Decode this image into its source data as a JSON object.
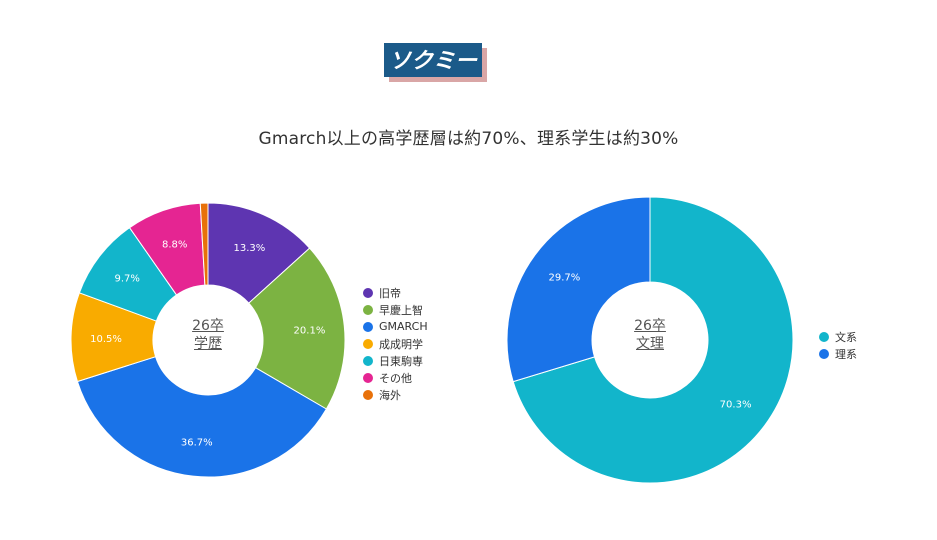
{
  "logo": {
    "text": "ソクミー",
    "bg": "#1b5a89",
    "fg": "#ffffff",
    "shadow": "#d9a6a6"
  },
  "headline": "Gmarch以上の高学歴層は約70%、理系学生は約30%",
  "chart_data": [
    {
      "type": "pie",
      "center_label": [
        "26卒",
        "学歴"
      ],
      "categories": [
        "旧帝",
        "早慶上智",
        "GMARCH",
        "成成明学",
        "日東駒専",
        "その他",
        "海外"
      ],
      "values": [
        13.3,
        20.1,
        36.7,
        10.5,
        9.7,
        8.8,
        0.9
      ],
      "labels": [
        "13.3%",
        "20.1%",
        "36.7%",
        "10.5%",
        "9.7%",
        "8.8%",
        ""
      ],
      "colors": [
        "#5e35b1",
        "#7cb342",
        "#1a73e8",
        "#f9ab00",
        "#12b5cb",
        "#e52592",
        "#e8710a"
      ],
      "legend": "right"
    },
    {
      "type": "pie",
      "center_label": [
        "26卒",
        "文理"
      ],
      "categories": [
        "文系",
        "理系"
      ],
      "values": [
        70.3,
        29.7
      ],
      "labels": [
        "70.3%",
        "29.7%"
      ],
      "colors": [
        "#12b5cb",
        "#1a73e8"
      ],
      "legend": "right"
    }
  ]
}
